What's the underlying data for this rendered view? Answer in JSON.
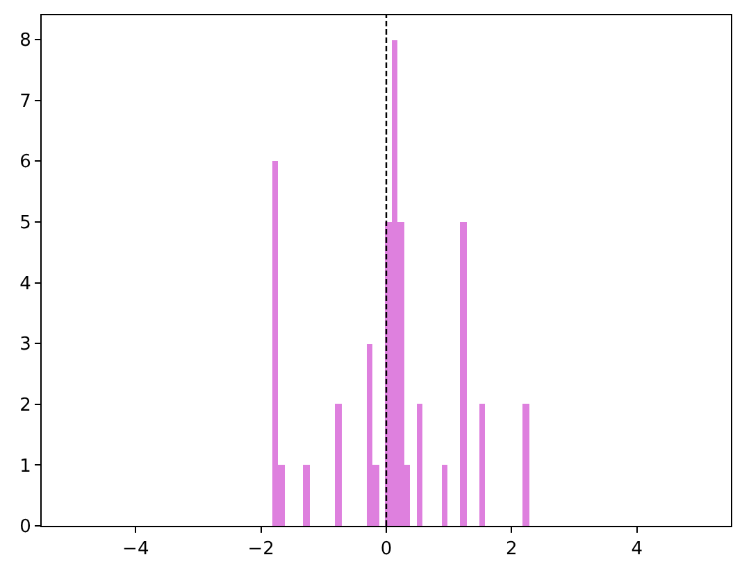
{
  "chart_data": {
    "type": "histogram",
    "bins": [
      -1.82,
      -1.72,
      -1.62,
      -1.52,
      -1.42,
      -1.32,
      -1.22,
      -1.12,
      -1.02,
      -0.92,
      -0.82,
      -0.72,
      -0.62,
      -0.52,
      -0.42,
      -0.32,
      -0.22,
      -0.12,
      -0.02,
      0.08,
      0.18,
      0.28,
      0.38,
      0.48,
      0.58,
      0.68,
      0.78,
      0.88,
      0.98,
      1.08,
      1.18,
      1.28,
      1.38,
      1.48,
      1.58,
      1.68,
      1.78,
      1.88,
      1.98,
      2.08,
      2.18,
      2.28
    ],
    "values": [
      6,
      1,
      0,
      0,
      0,
      1,
      0,
      0,
      0,
      0,
      2,
      0,
      0,
      0,
      0,
      3,
      1,
      0,
      5,
      8,
      5,
      1,
      0,
      2,
      0,
      0,
      0,
      1,
      0,
      0,
      5,
      0,
      0,
      2,
      0,
      0,
      0,
      0,
      0,
      0,
      2
    ],
    "color": "#de80de",
    "xlim": [
      -5.5,
      5.5
    ],
    "xticks": [
      {
        "value": -4,
        "label": "−4"
      },
      {
        "value": -2,
        "label": "−2"
      },
      0,
      2,
      4
    ],
    "ylim": [
      0,
      8.4
    ],
    "yticks": [
      0,
      1,
      2,
      3,
      4,
      5,
      6,
      7,
      8
    ],
    "ref_lines": [
      {
        "axis": "x",
        "value": 0,
        "color": "#000000",
        "line_style": "dashed"
      }
    ],
    "grid": false
  }
}
